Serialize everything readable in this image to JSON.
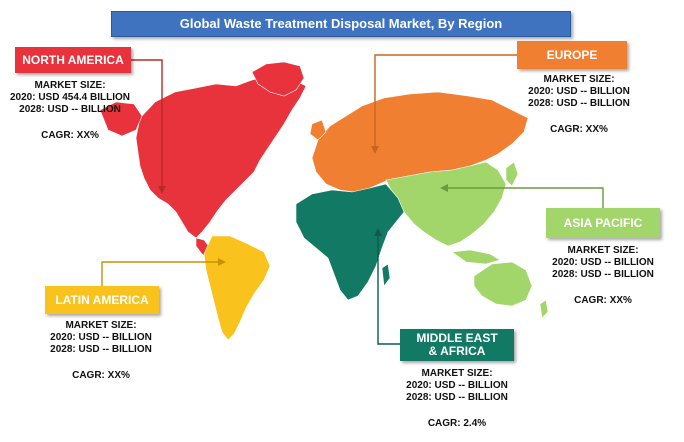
{
  "title": "Global Waste Treatment Disposal Market, By Region",
  "colors": {
    "north_america": "#e8333c",
    "europe": "#f07f31",
    "asia_pacific": "#a2d66a",
    "middle_east_africa": "#127a64",
    "latin_america": "#fac21d",
    "title_bar": "#3f73c0"
  },
  "regions": {
    "north_america": {
      "name": "NORTH AMERICA",
      "market_size_label": "MARKET SIZE:",
      "line_2020": "2020: USD 454.4 BILLION",
      "line_2028": "2028: USD -- BILLION",
      "cagr": "CAGR: XX%"
    },
    "europe": {
      "name": "EUROPE",
      "market_size_label": "MARKET SIZE:",
      "line_2020": "2020: USD -- BILLION",
      "line_2028": "2028: USD -- BILLION",
      "cagr": "CAGR: XX%"
    },
    "asia_pacific": {
      "name": "ASIA PACIFIC",
      "market_size_label": "MARKET SIZE:",
      "line_2020": "2020: USD -- BILLION",
      "line_2028": "2028: USD -- BILLION",
      "cagr": "CAGR: XX%"
    },
    "latin_america": {
      "name": "LATIN AMERICA",
      "market_size_label": "MARKET SIZE:",
      "line_2020": "2020: USD -- BILLION",
      "line_2028": "2028: USD -- BILLION",
      "cagr": "CAGR: XX%"
    },
    "middle_east_africa": {
      "name_line1": "MIDDLE EAST",
      "name_line2": "& AFRICA",
      "market_size_label": "MARKET SIZE:",
      "line_2020": "2020: USD -- BILLION",
      "line_2028": "2028: USD -- BILLION",
      "cagr": "CAGR: 2.4%"
    }
  }
}
